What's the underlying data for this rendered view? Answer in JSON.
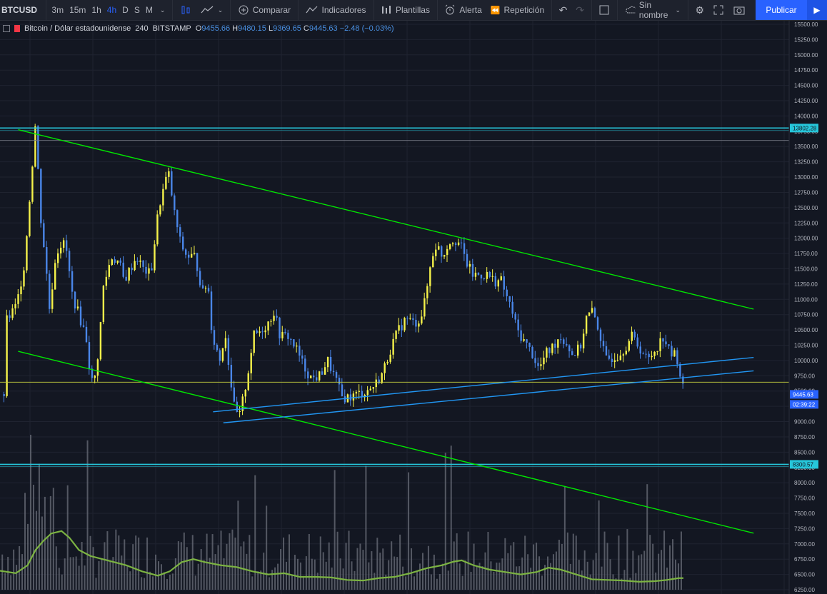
{
  "toolbar": {
    "symbol": "BTCUSD",
    "timeframes": [
      "3m",
      "15m",
      "1h",
      "4h",
      "D",
      "S",
      "M"
    ],
    "active_timeframe": "4h",
    "compare_label": "Comparar",
    "indicators_label": "Indicadores",
    "templates_label": "Plantillas",
    "alert_label": "Alerta",
    "replay_label": "Repetición",
    "layout_name": "Sin nombre",
    "publish_label": "Publicar",
    "accent_color": "#2962ff"
  },
  "legend": {
    "title": "Bitcoin / Dólar estadounidense",
    "interval": "240",
    "exchange": "BITSTAMP",
    "open_label": "O",
    "open": "9455.66",
    "high_label": "H",
    "high": "9480.15",
    "low_label": "L",
    "low": "9369.65",
    "close_label": "C",
    "close": "9445.63",
    "change": "−2.48 (−0.03%)"
  },
  "chart_data": {
    "type": "candlestick",
    "price_axis_labels": [
      "15500.00",
      "15250.00",
      "15000.00",
      "14750.00",
      "14500.00",
      "14250.00",
      "14000.00",
      "13750.00",
      "13500.00",
      "13250.00",
      "13000.00",
      "12750.00",
      "12500.00",
      "12250.00",
      "12000.00",
      "11750.00",
      "11500.00",
      "11250.00",
      "11000.00",
      "10750.00",
      "10500.00",
      "10250.00",
      "10000.00",
      "9750.00",
      "9500.00",
      "9250.00",
      "9000.00",
      "8750.00",
      "8500.00",
      "8250.00",
      "8000.00",
      "7750.00",
      "7500.00",
      "7250.00",
      "7000.00",
      "6750.00",
      "6500.00",
      "6250.00"
    ],
    "ylim": [
      6250,
      15500
    ],
    "last_price": "9445.63",
    "countdown": "02:39:22",
    "horizontal_levels": [
      {
        "label": "13802.28",
        "price": 13802.28,
        "color": "#26c6da"
      },
      {
        "label": "8300.57",
        "price": 8300.57,
        "color": "#26c6da"
      },
      {
        "price": 9645,
        "color": "#c6d03e"
      },
      {
        "price": 13600,
        "color": "#787b86"
      }
    ],
    "trendlines": [
      {
        "color": "#00e600",
        "from": [
          0.023,
          13775
        ],
        "to": [
          0.955,
          10840
        ]
      },
      {
        "color": "#00e600",
        "from": [
          0.023,
          10150
        ],
        "to": [
          0.955,
          7175
        ]
      },
      {
        "color": "#2196f3",
        "from": [
          0.27,
          9160
        ],
        "to": [
          0.955,
          10050
        ]
      },
      {
        "color": "#2196f3",
        "from": [
          0.283,
          8980
        ],
        "to": [
          0.955,
          9830
        ]
      }
    ],
    "price_path": [
      [
        0.005,
        10600
      ],
      [
        0.02,
        10900
      ],
      [
        0.03,
        11600
      ],
      [
        0.038,
        12900
      ],
      [
        0.044,
        13900
      ],
      [
        0.05,
        12400
      ],
      [
        0.056,
        11700
      ],
      [
        0.062,
        10800
      ],
      [
        0.068,
        11600
      ],
      [
        0.074,
        11900
      ],
      [
        0.082,
        11900
      ],
      [
        0.09,
        11100
      ],
      [
        0.1,
        10700
      ],
      [
        0.108,
        10400
      ],
      [
        0.114,
        9700
      ],
      [
        0.118,
        9600
      ],
      [
        0.124,
        10200
      ],
      [
        0.13,
        11200
      ],
      [
        0.14,
        11700
      ],
      [
        0.15,
        11600
      ],
      [
        0.156,
        11300
      ],
      [
        0.164,
        11500
      ],
      [
        0.172,
        11700
      ],
      [
        0.18,
        11500
      ],
      [
        0.19,
        11400
      ],
      [
        0.2,
        12500
      ],
      [
        0.206,
        12800
      ],
      [
        0.212,
        13100
      ],
      [
        0.22,
        12400
      ],
      [
        0.228,
        11900
      ],
      [
        0.236,
        11700
      ],
      [
        0.246,
        11700
      ],
      [
        0.256,
        11100
      ],
      [
        0.262,
        11300
      ],
      [
        0.268,
        10400
      ],
      [
        0.278,
        10000
      ],
      [
        0.284,
        10500
      ],
      [
        0.29,
        9800
      ],
      [
        0.296,
        9200
      ],
      [
        0.302,
        9050
      ],
      [
        0.312,
        9700
      ],
      [
        0.32,
        10400
      ],
      [
        0.33,
        10500
      ],
      [
        0.338,
        10600
      ],
      [
        0.346,
        10800
      ],
      [
        0.354,
        10400
      ],
      [
        0.364,
        10400
      ],
      [
        0.374,
        10200
      ],
      [
        0.384,
        9900
      ],
      [
        0.394,
        9700
      ],
      [
        0.404,
        9750
      ],
      [
        0.414,
        10000
      ],
      [
        0.424,
        9700
      ],
      [
        0.432,
        9400
      ],
      [
        0.442,
        9400
      ],
      [
        0.452,
        9450
      ],
      [
        0.464,
        9500
      ],
      [
        0.474,
        9600
      ],
      [
        0.484,
        9800
      ],
      [
        0.494,
        10200
      ],
      [
        0.504,
        10500
      ],
      [
        0.514,
        10700
      ],
      [
        0.524,
        10600
      ],
      [
        0.532,
        10700
      ],
      [
        0.538,
        11000
      ],
      [
        0.546,
        11700
      ],
      [
        0.552,
        11900
      ],
      [
        0.56,
        11700
      ],
      [
        0.566,
        11900
      ],
      [
        0.574,
        12000
      ],
      [
        0.582,
        11900
      ],
      [
        0.59,
        11600
      ],
      [
        0.598,
        11400
      ],
      [
        0.606,
        11400
      ],
      [
        0.616,
        11400
      ],
      [
        0.626,
        11300
      ],
      [
        0.634,
        11300
      ],
      [
        0.642,
        11000
      ],
      [
        0.648,
        10800
      ],
      [
        0.654,
        10500
      ],
      [
        0.664,
        10300
      ],
      [
        0.674,
        10100
      ],
      [
        0.682,
        9850
      ],
      [
        0.69,
        10100
      ],
      [
        0.698,
        10200
      ],
      [
        0.708,
        10400
      ],
      [
        0.716,
        10300
      ],
      [
        0.724,
        10100
      ],
      [
        0.734,
        10200
      ],
      [
        0.742,
        10700
      ],
      [
        0.75,
        10800
      ],
      [
        0.758,
        10500
      ],
      [
        0.766,
        10000
      ],
      [
        0.774,
        10050
      ],
      [
        0.782,
        10100
      ],
      [
        0.79,
        10200
      ],
      [
        0.8,
        10400
      ],
      [
        0.81,
        10200
      ],
      [
        0.82,
        10000
      ],
      [
        0.83,
        10200
      ],
      [
        0.84,
        10400
      ],
      [
        0.848,
        10100
      ],
      [
        0.856,
        10100
      ],
      [
        0.862,
        9700
      ],
      [
        0.866,
        9450
      ]
    ],
    "volume_ma": [
      [
        0.0,
        6560
      ],
      [
        0.02,
        6520
      ],
      [
        0.035,
        6650
      ],
      [
        0.045,
        6900
      ],
      [
        0.055,
        7050
      ],
      [
        0.065,
        7170
      ],
      [
        0.078,
        7210
      ],
      [
        0.088,
        7100
      ],
      [
        0.1,
        6900
      ],
      [
        0.115,
        6800
      ],
      [
        0.13,
        6750
      ],
      [
        0.145,
        6700
      ],
      [
        0.16,
        6650
      ],
      [
        0.18,
        6550
      ],
      [
        0.2,
        6480
      ],
      [
        0.215,
        6550
      ],
      [
        0.23,
        6700
      ],
      [
        0.245,
        6750
      ],
      [
        0.26,
        6700
      ],
      [
        0.28,
        6650
      ],
      [
        0.3,
        6620
      ],
      [
        0.32,
        6550
      ],
      [
        0.34,
        6500
      ],
      [
        0.36,
        6520
      ],
      [
        0.38,
        6460
      ],
      [
        0.4,
        6460
      ],
      [
        0.42,
        6450
      ],
      [
        0.44,
        6410
      ],
      [
        0.46,
        6400
      ],
      [
        0.48,
        6440
      ],
      [
        0.5,
        6460
      ],
      [
        0.52,
        6520
      ],
      [
        0.54,
        6600
      ],
      [
        0.56,
        6650
      ],
      [
        0.575,
        6710
      ],
      [
        0.585,
        6730
      ],
      [
        0.6,
        6650
      ],
      [
        0.62,
        6580
      ],
      [
        0.64,
        6540
      ],
      [
        0.66,
        6500
      ],
      [
        0.68,
        6540
      ],
      [
        0.695,
        6610
      ],
      [
        0.71,
        6580
      ],
      [
        0.73,
        6500
      ],
      [
        0.75,
        6420
      ],
      [
        0.77,
        6410
      ],
      [
        0.79,
        6400
      ],
      [
        0.81,
        6380
      ],
      [
        0.83,
        6390
      ],
      [
        0.845,
        6410
      ],
      [
        0.86,
        6440
      ],
      [
        0.866,
        6440
      ]
    ],
    "volume_ylim": [
      6250,
      8500
    ],
    "grid": true
  }
}
